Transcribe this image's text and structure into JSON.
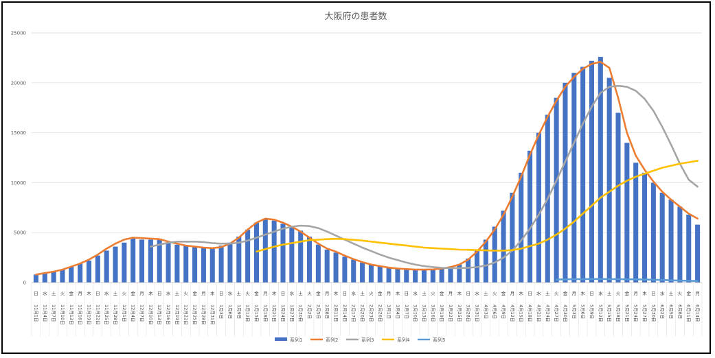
{
  "chart_data": {
    "type": "bar",
    "title": "大阪府の患者数",
    "xlabel": "",
    "ylabel": "",
    "ylim": [
      0,
      25000
    ],
    "yticks": [
      0,
      5000,
      10000,
      15000,
      20000,
      25000
    ],
    "grid": true,
    "legend_position": "bottom",
    "x": [
      "11月1日",
      "11月4日",
      "11月7日",
      "11月10日",
      "11月13日",
      "11月16日",
      "11月19日",
      "11月22日",
      "11月25日",
      "11月28日",
      "12月1日",
      "12月4日",
      "12月7日",
      "12月10日",
      "12月13日",
      "12月16日",
      "12月19日",
      "12月22日",
      "12月25日",
      "12月28日",
      "12月31日",
      "1月3日",
      "1月6日",
      "1月9日",
      "1月12日",
      "1月15日",
      "1月18日",
      "1月21日",
      "1月24日",
      "1月27日",
      "1月30日",
      "2月2日",
      "2月5日",
      "2月8日",
      "2月11日",
      "2月14日",
      "2月17日",
      "2月20日",
      "2月23日",
      "2月26日",
      "3月1日",
      "3月4日",
      "3月7日",
      "3月10日",
      "3月13日",
      "3月16日",
      "3月19日",
      "3月22日",
      "3月25日",
      "3月28日",
      "3月31日",
      "4月3日",
      "4月6日",
      "4月9日",
      "4月12日",
      "4月15日",
      "4月18日",
      "4月21日",
      "4月24日",
      "4月27日",
      "4月30日",
      "5月3日",
      "5月6日",
      "5月9日",
      "5月12日",
      "5月15日",
      "5月18日",
      "5月21日",
      "5月24日",
      "5月27日",
      "5月30日",
      "6月2日",
      "6月5日",
      "6月8日",
      "6月11日",
      "6月14日"
    ],
    "weekday_labels": [
      "日",
      "水",
      "土",
      "火",
      "金",
      "月",
      "木",
      "日",
      "水",
      "土",
      "火",
      "金",
      "月",
      "木",
      "日",
      "水",
      "土",
      "火",
      "金",
      "月",
      "木",
      "日",
      "水",
      "土",
      "火",
      "金",
      "月",
      "木",
      "日",
      "水",
      "土",
      "火",
      "金",
      "月",
      "木",
      "日",
      "水",
      "土",
      "火",
      "金",
      "月",
      "木",
      "日",
      "水",
      "土",
      "火",
      "金",
      "月",
      "木",
      "日",
      "水",
      "土",
      "火",
      "金",
      "月",
      "木",
      "日",
      "水",
      "土",
      "火",
      "金",
      "月",
      "木",
      "日",
      "水",
      "土",
      "火",
      "金",
      "月",
      "木",
      "日",
      "水",
      "土",
      "火",
      "金",
      "月"
    ],
    "series": [
      {
        "name": "系列1",
        "type": "bar",
        "color": "#4472C4",
        "values": [
          800,
          950,
          1100,
          1300,
          1600,
          1900,
          2200,
          2700,
          3200,
          3600,
          4000,
          4500,
          4300,
          4300,
          4400,
          4000,
          3800,
          3700,
          3600,
          3500,
          3500,
          3700,
          4000,
          4600,
          5300,
          6000,
          6400,
          6200,
          5900,
          5600,
          5200,
          4600,
          3800,
          3300,
          3000,
          2600,
          2300,
          2000,
          1800,
          1650,
          1500,
          1400,
          1350,
          1300,
          1300,
          1350,
          1400,
          1500,
          1800,
          2400,
          3200,
          4300,
          5600,
          7200,
          9000,
          11000,
          13200,
          15000,
          16800,
          18500,
          20000,
          21000,
          21600,
          22200,
          22600,
          20500,
          17000,
          14000,
          12000,
          11000,
          10000,
          9000,
          8300,
          7600,
          6800,
          5800
        ]
      },
      {
        "name": "系列2",
        "type": "line",
        "color": "#ED7D31",
        "values": [
          800,
          950,
          1100,
          1300,
          1600,
          1900,
          2300,
          2800,
          3400,
          3900,
          4300,
          4500,
          4450,
          4400,
          4350,
          4100,
          3900,
          3700,
          3600,
          3500,
          3450,
          3550,
          3900,
          4500,
          5300,
          6000,
          6400,
          6300,
          6000,
          5600,
          5100,
          4500,
          3900,
          3400,
          3100,
          2700,
          2350,
          2050,
          1800,
          1650,
          1500,
          1400,
          1350,
          1300,
          1300,
          1320,
          1400,
          1550,
          1800,
          2300,
          3100,
          4100,
          5300,
          6800,
          8600,
          10600,
          12800,
          14800,
          16600,
          18200,
          19600,
          20600,
          21400,
          21900,
          22100,
          21500,
          18500,
          15000,
          12700,
          11300,
          10100,
          9100,
          8300,
          7600,
          6900,
          6400
        ]
      },
      {
        "name": "系列3",
        "type": "line",
        "color": "#A5A5A5",
        "values": [
          null,
          null,
          null,
          null,
          null,
          null,
          null,
          null,
          null,
          null,
          null,
          null,
          null,
          3600,
          3800,
          4000,
          4100,
          4100,
          4100,
          4050,
          3950,
          3900,
          3900,
          4000,
          4200,
          4500,
          4800,
          5100,
          5400,
          5600,
          5700,
          5650,
          5450,
          5100,
          4700,
          4300,
          3900,
          3500,
          3150,
          2800,
          2500,
          2250,
          2000,
          1800,
          1650,
          1550,
          1480,
          1450,
          1450,
          1480,
          1550,
          1700,
          2000,
          2500,
          3200,
          4200,
          5400,
          6800,
          8400,
          10200,
          12100,
          14000,
          15900,
          17600,
          19000,
          19600,
          19700,
          19600,
          19200,
          18400,
          17200,
          15600,
          13800,
          11900,
          10300,
          9600
        ]
      },
      {
        "name": "系列4",
        "type": "line",
        "color": "#FFC000",
        "values": [
          null,
          null,
          null,
          null,
          null,
          null,
          null,
          null,
          null,
          null,
          null,
          null,
          null,
          null,
          null,
          null,
          null,
          null,
          null,
          null,
          null,
          null,
          null,
          null,
          null,
          3100,
          3350,
          3600,
          3800,
          3950,
          4100,
          4250,
          4300,
          4350,
          4380,
          4350,
          4280,
          4200,
          4100,
          4000,
          3900,
          3800,
          3700,
          3600,
          3500,
          3450,
          3400,
          3350,
          3300,
          3280,
          3250,
          3220,
          3200,
          3200,
          3250,
          3400,
          3650,
          3900,
          4300,
          4800,
          5400,
          6100,
          6900,
          7700,
          8500,
          9100,
          9700,
          10200,
          10600,
          10900,
          11200,
          11500,
          11700,
          11900,
          12050,
          12200
        ]
      },
      {
        "name": "系列5",
        "type": "line",
        "color": "#5B9BD5",
        "values": [
          null,
          null,
          null,
          null,
          null,
          null,
          null,
          null,
          null,
          null,
          null,
          null,
          null,
          null,
          null,
          null,
          null,
          null,
          null,
          null,
          null,
          null,
          null,
          null,
          null,
          null,
          null,
          null,
          null,
          null,
          null,
          null,
          null,
          null,
          null,
          null,
          null,
          null,
          null,
          null,
          null,
          null,
          null,
          null,
          null,
          null,
          null,
          null,
          null,
          null,
          null,
          null,
          null,
          null,
          null,
          null,
          null,
          null,
          null,
          300,
          320,
          340,
          350,
          360,
          360,
          350,
          340,
          330,
          320,
          300,
          280,
          260,
          230,
          200,
          180,
          160
        ]
      }
    ]
  }
}
